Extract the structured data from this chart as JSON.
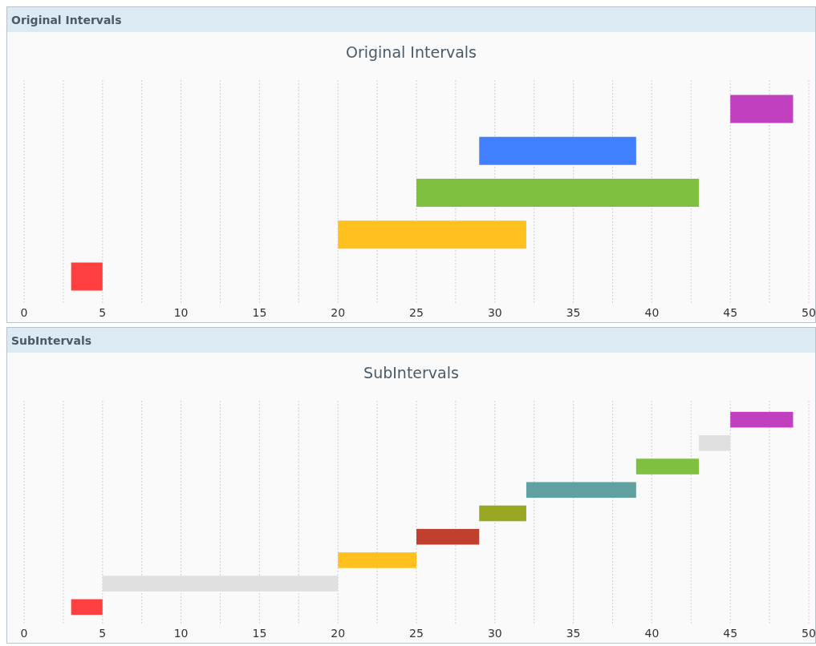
{
  "chart_data": [
    {
      "type": "bar",
      "title": "Original Intervals",
      "subtitle": "Original Intervals",
      "orientation": "horizontal",
      "categories": [
        null,
        null,
        null,
        null,
        null
      ],
      "base": [
        45,
        29,
        25,
        20,
        3
      ],
      "values": [
        4,
        10,
        18,
        12,
        2
      ],
      "colors": [
        "#c040c0",
        "#4080ff",
        "#80c040",
        "#ffc020",
        "#ff4040"
      ],
      "xlim": [
        0,
        50
      ],
      "xticks": [
        0,
        {
          "value": 2.5,
          "label": null
        },
        5,
        {
          "value": 7.5,
          "label": null
        },
        10,
        {
          "value": 12.5,
          "label": null
        },
        15,
        {
          "value": 17.5,
          "label": null
        },
        20,
        {
          "value": 22.5,
          "label": null
        },
        25,
        {
          "value": 27.5,
          "label": null
        },
        30,
        {
          "value": 32.5,
          "label": null
        },
        35,
        {
          "value": 37.5,
          "label": null
        },
        40,
        {
          "value": 42.5,
          "label": null
        },
        45,
        {
          "value": 47.5,
          "label": null
        },
        50
      ],
      "grid": "x"
    },
    {
      "type": "bar",
      "title": "SubIntervals",
      "subtitle": "SubIntervals",
      "orientation": "horizontal",
      "categories": [
        null,
        null,
        null,
        null,
        null,
        null,
        null,
        null,
        null
      ],
      "base": [
        45,
        43,
        39,
        32,
        29,
        25,
        20,
        5,
        3
      ],
      "values": [
        4,
        2,
        4,
        7,
        3,
        4,
        5,
        15,
        2
      ],
      "colors": [
        "#c040c0",
        "#e0e0e0",
        "#80c040",
        "#60a0a0",
        "#98a820",
        "#c04030",
        "#ffc020",
        "#e0e0e0",
        "#ff4040"
      ],
      "xlim": [
        0,
        50
      ],
      "xticks": [
        0,
        {
          "value": 2.5,
          "label": null
        },
        5,
        {
          "value": 7.5,
          "label": null
        },
        10,
        {
          "value": 12.5,
          "label": null
        },
        15,
        {
          "value": 17.5,
          "label": null
        },
        20,
        {
          "value": 22.5,
          "label": null
        },
        25,
        {
          "value": 27.5,
          "label": null
        },
        30,
        {
          "value": 32.5,
          "label": null
        },
        35,
        {
          "value": 37.5,
          "label": null
        },
        40,
        {
          "value": 42.5,
          "label": null
        },
        45,
        {
          "value": 47.5,
          "label": null
        },
        50
      ],
      "grid": "x"
    }
  ]
}
